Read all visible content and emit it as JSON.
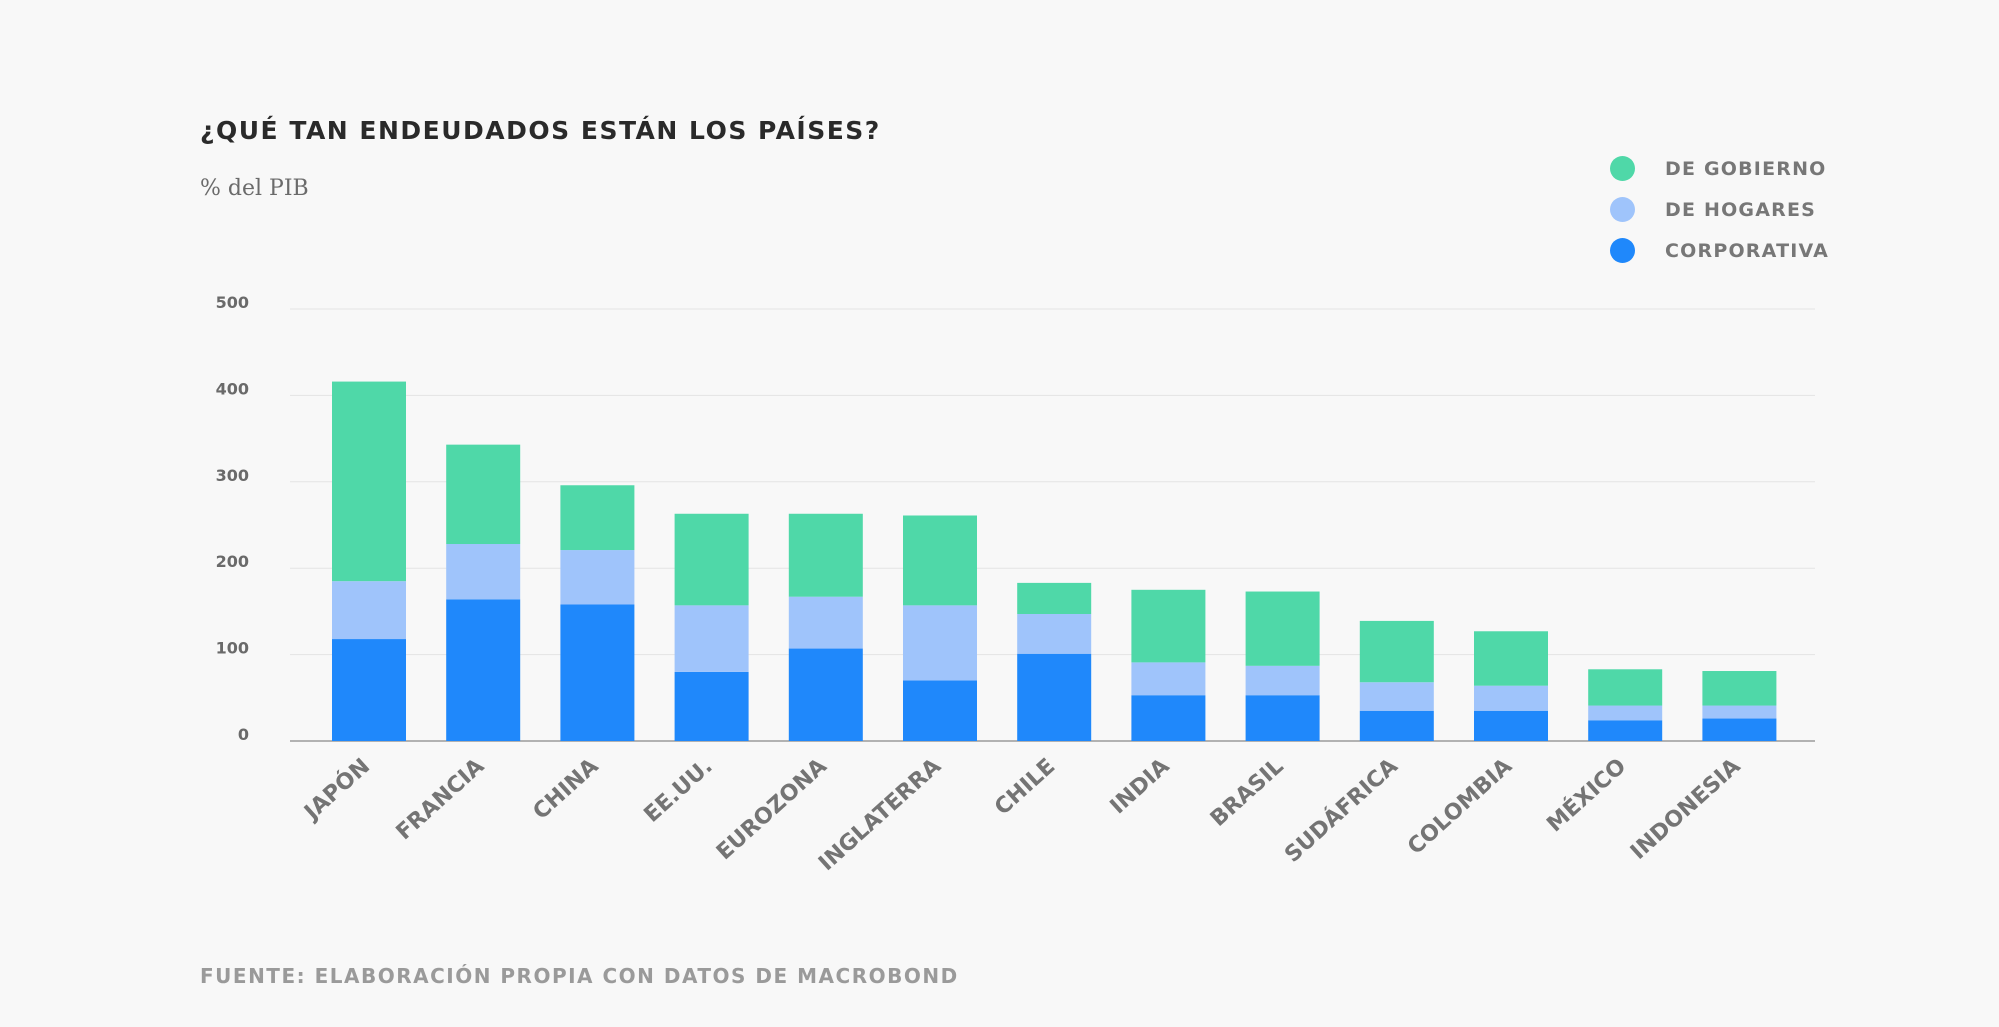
{
  "header": {
    "title": "¿QUÉ TAN ENDEUDADOS ESTÁN LOS PAÍSES?",
    "subtitle": "% del PIB"
  },
  "legend": [
    {
      "label": "DE GOBIERNO",
      "color": "#4fd8a8"
    },
    {
      "label": "DE HOGARES",
      "color": "#9fc4fb"
    },
    {
      "label": "CORPORATIVA",
      "color": "#1f88fb"
    }
  ],
  "footer": {
    "source": "FUENTE: ELABORACIÓN PROPIA CON DATOS DE MACROBOND"
  },
  "chart_data": {
    "type": "bar",
    "stacked": true,
    "title": "¿QUÉ TAN ENDEUDADOS ESTÁN LOS PAÍSES?",
    "ylabel": "% del PIB",
    "xlabel": "",
    "ylim": [
      0,
      500
    ],
    "yticks": [
      0,
      100,
      200,
      300,
      400,
      500
    ],
    "grid": true,
    "legend_position": "top-right",
    "categories": [
      "JAPÓN",
      "FRANCIA",
      "CHINA",
      "EE.UU.",
      "EUROZONA",
      "INGLATERRA",
      "CHILE",
      "INDIA",
      "BRASIL",
      "SUDÁFRICA",
      "COLOMBIA",
      "MÉXICO",
      "INDONESIA"
    ],
    "series": [
      {
        "name": "CORPORATIVA",
        "color": "#1f88fb",
        "values": [
          118,
          164,
          158,
          80,
          107,
          70,
          101,
          53,
          53,
          35,
          35,
          24,
          26
        ]
      },
      {
        "name": "DE HOGARES",
        "color": "#9fc4fb",
        "values": [
          67,
          64,
          63,
          77,
          60,
          87,
          46,
          38,
          34,
          33,
          29,
          17,
          15
        ]
      },
      {
        "name": "DE GOBIERNO",
        "color": "#4fd8a8",
        "values": [
          231,
          115,
          75,
          106,
          96,
          104,
          36,
          84,
          86,
          71,
          63,
          42,
          40
        ]
      }
    ]
  }
}
